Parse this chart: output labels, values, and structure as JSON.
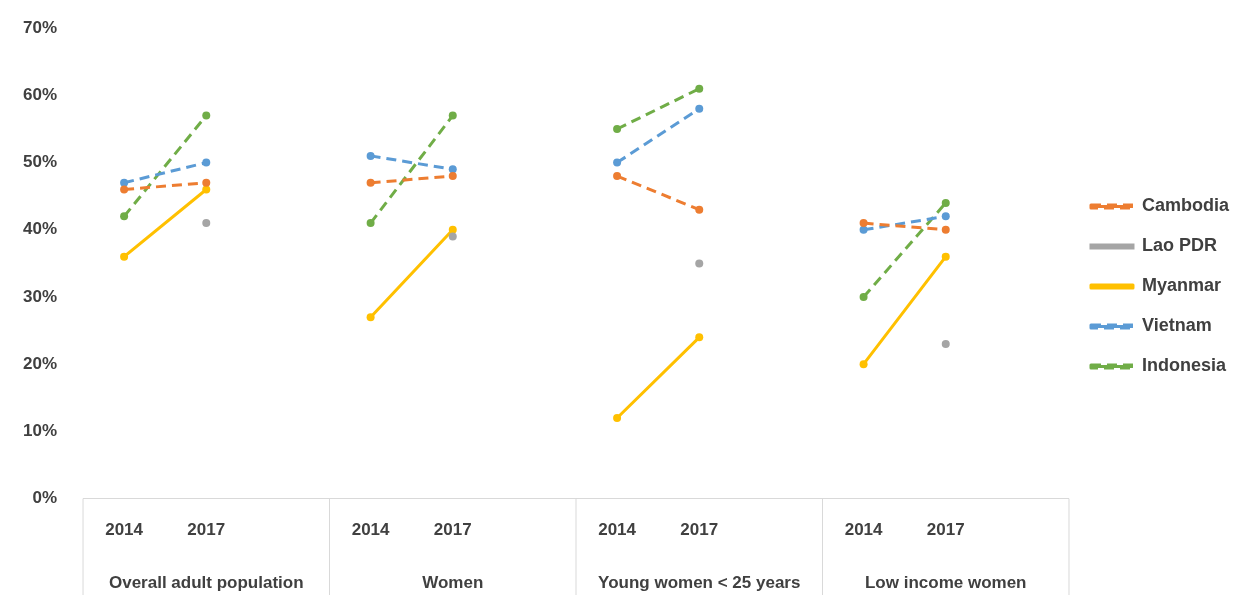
{
  "chart_data": {
    "type": "line",
    "categories": [
      "2014",
      "2017",
      null,
      "2014",
      "2017",
      null,
      "2014",
      "2017",
      null,
      "2014",
      "2017",
      null
    ],
    "annotations": [
      "Overall adult population",
      "Women",
      "Young women < 25 years",
      "Low income women"
    ],
    "ylim": [
      0,
      70
    ],
    "yticks": [
      {
        "value": 0,
        "label": "0%"
      },
      {
        "value": 10,
        "label": "10%"
      },
      {
        "value": 20,
        "label": "20%"
      },
      {
        "value": 30,
        "label": "30%"
      },
      {
        "value": 40,
        "label": "40%"
      },
      {
        "value": 50,
        "label": "50%"
      },
      {
        "value": 60,
        "label": "60%"
      },
      {
        "value": 70,
        "label": "70%"
      }
    ],
    "grid": false,
    "legend": "right",
    "marker": "circle",
    "series": [
      {
        "name": "Cambodia",
        "color": "#ed7d31",
        "line_style": "dashed",
        "values": [
          46,
          47,
          null,
          47,
          48,
          null,
          48,
          43,
          null,
          41,
          40,
          null
        ]
      },
      {
        "name": "Lao PDR",
        "type": "scatter",
        "color": "#a5a5a5",
        "values": [
          null,
          41,
          null,
          null,
          39,
          null,
          null,
          35,
          null,
          null,
          23,
          null
        ]
      },
      {
        "name": "Myanmar",
        "color": "#ffc000",
        "line_style": "solid",
        "values": [
          36,
          46,
          null,
          27,
          40,
          null,
          12,
          24,
          null,
          20,
          36,
          null
        ]
      },
      {
        "name": "Vietnam",
        "color": "#5b9bd5",
        "line_style": "dashed",
        "values": [
          47,
          50,
          null,
          51,
          49,
          null,
          50,
          58,
          null,
          40,
          42,
          null
        ]
      },
      {
        "name": "Indonesia",
        "color": "#70ad47",
        "line_style": "dashed",
        "values": [
          42,
          57,
          null,
          41,
          57,
          null,
          55,
          61,
          null,
          30,
          44,
          null
        ]
      }
    ]
  }
}
